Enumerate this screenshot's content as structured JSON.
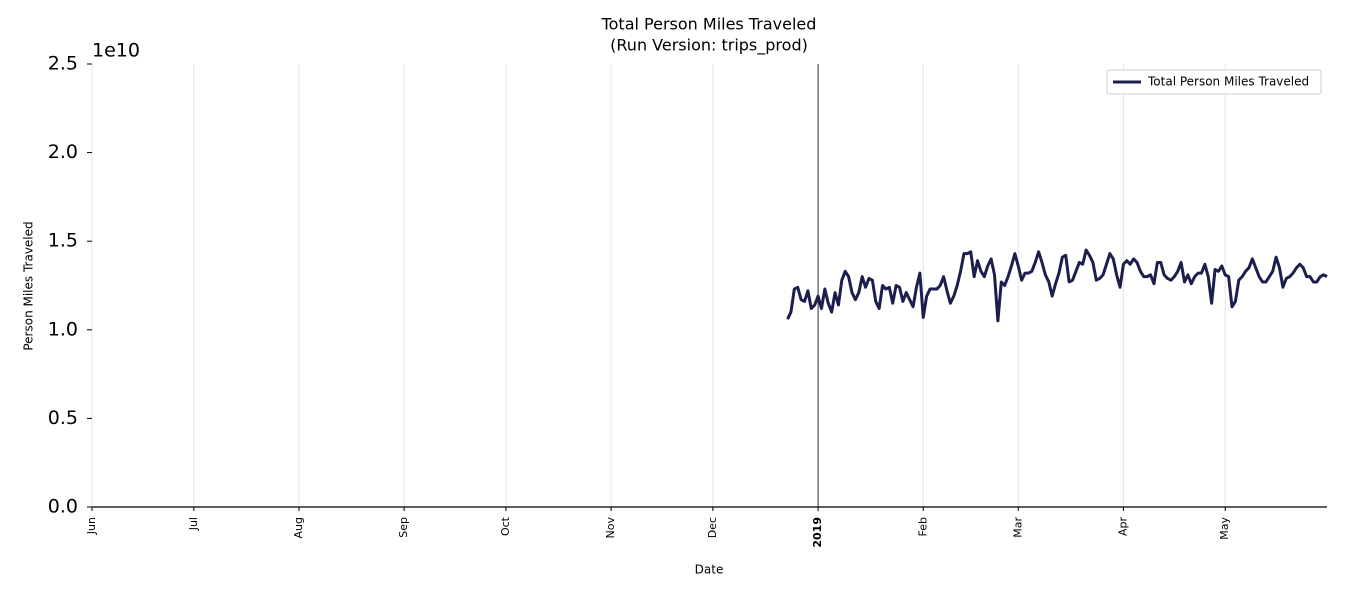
{
  "chart_data": {
    "type": "line",
    "title": "Total Person Miles Traveled",
    "subtitle": "(Run Version: trips_prod)",
    "x_label": "Date",
    "y_label": "Person Miles Traveled",
    "y_offset_label": "1e10",
    "xlim": [
      0,
      364
    ],
    "xticks": [
      {
        "value": 0,
        "label": "Jun"
      },
      {
        "value": 30,
        "label": "Jul"
      },
      {
        "value": 61,
        "label": "Aug"
      },
      {
        "value": 92,
        "label": "Sep"
      },
      {
        "value": 122,
        "label": "Oct"
      },
      {
        "value": 153,
        "label": "Nov"
      },
      {
        "value": 183,
        "label": "Dec"
      },
      {
        "value": 214,
        "label": "2019",
        "bold": true
      },
      {
        "value": 245,
        "label": "Feb"
      },
      {
        "value": 273,
        "label": "Mar"
      },
      {
        "value": 304,
        "label": "Apr"
      },
      {
        "value": 334,
        "label": "May"
      }
    ],
    "ylim": [
      0,
      25000000000
    ],
    "yticks": [
      {
        "value": 0,
        "label": "0.0"
      },
      {
        "value": 5000000000,
        "label": "0.5"
      },
      {
        "value": 10000000000,
        "label": "1.0"
      },
      {
        "value": 15000000000,
        "label": "1.5"
      },
      {
        "value": 20000000000,
        "label": "2.0"
      },
      {
        "value": 25000000000,
        "label": "2.5"
      }
    ],
    "grid": true,
    "legend": "upper right",
    "x": [
      205,
      206,
      207,
      208,
      209,
      210,
      211,
      212,
      213,
      214,
      215,
      216,
      217,
      218,
      219,
      220,
      221,
      222,
      223,
      224,
      225,
      226,
      227,
      228,
      229,
      230,
      231,
      232,
      233,
      234,
      235,
      236,
      237,
      238,
      239,
      240,
      241,
      242,
      243,
      244,
      245,
      246,
      247,
      248,
      249,
      250,
      251,
      252,
      253,
      254,
      255,
      256,
      257,
      258,
      259,
      260,
      261,
      262,
      263,
      264,
      265,
      266,
      267,
      268,
      269,
      270,
      271,
      272,
      273,
      274,
      275,
      276,
      277,
      278,
      279,
      280,
      281,
      282,
      283,
      284,
      285,
      286,
      287,
      288,
      289,
      290,
      291,
      292,
      293,
      294,
      295,
      296,
      297,
      298,
      299,
      300,
      301,
      302,
      303,
      304,
      305,
      306,
      307,
      308,
      309,
      310,
      311,
      312,
      313,
      314,
      315,
      316,
      317,
      318,
      319,
      320,
      321,
      322,
      323,
      324,
      325,
      326,
      327,
      328,
      329,
      330,
      331,
      332,
      333,
      334,
      335,
      336,
      337,
      338,
      339,
      340,
      341,
      342,
      343,
      344,
      345,
      346,
      347,
      348,
      349,
      350,
      351,
      352,
      353,
      354,
      355,
      356,
      357,
      358,
      359,
      360,
      361,
      362,
      363,
      364
    ],
    "series": [
      {
        "name": "Total Person Miles Traveled",
        "color": "#1c1f4d",
        "values": [
          10600000000.0,
          11000000000.0,
          12300000000.0,
          12400000000.0,
          11700000000.0,
          11600000000.0,
          12200000000.0,
          11200000000.0,
          11400000000.0,
          11900000000.0,
          11200000000.0,
          12300000000.0,
          11500000000.0,
          11000000000.0,
          12100000000.0,
          11400000000.0,
          12800000000.0,
          13300000000.0,
          13000000000.0,
          12100000000.0,
          11700000000.0,
          12100000000.0,
          13000000000.0,
          12400000000.0,
          12900000000.0,
          12800000000.0,
          11600000000.0,
          11200000000.0,
          12500000000.0,
          12300000000.0,
          12400000000.0,
          11500000000.0,
          12500000000.0,
          12400000000.0,
          11600000000.0,
          12100000000.0,
          11700000000.0,
          11300000000.0,
          12400000000.0,
          13200000000.0,
          10700000000.0,
          11900000000.0,
          12300000000.0,
          12300000000.0,
          12300000000.0,
          12500000000.0,
          13000000000.0,
          12200000000.0,
          11500000000.0,
          11900000000.0,
          12500000000.0,
          13300000000.0,
          14300000000.0,
          14300000000.0,
          14400000000.0,
          13000000000.0,
          13900000000.0,
          13300000000.0,
          13000000000.0,
          13600000000.0,
          14000000000.0,
          13100000000.0,
          10500000000.0,
          12700000000.0,
          12500000000.0,
          13000000000.0,
          13600000000.0,
          14300000000.0,
          13600000000.0,
          12800000000.0,
          13200000000.0,
          13200000000.0,
          13300000000.0,
          13800000000.0,
          14400000000.0,
          13800000000.0,
          13100000000.0,
          12700000000.0,
          11900000000.0,
          12600000000.0,
          13200000000.0,
          14100000000.0,
          14200000000.0,
          12700000000.0,
          12800000000.0,
          13300000000.0,
          13800000000.0,
          13700000000.0,
          14500000000.0,
          14200000000.0,
          13800000000.0,
          12800000000.0,
          12900000000.0,
          13100000000.0,
          13700000000.0,
          14300000000.0,
          14000000000.0,
          13100000000.0,
          12400000000.0,
          13700000000.0,
          13900000000.0,
          13700000000.0,
          14000000000.0,
          13800000000.0,
          13300000000.0,
          13000000000.0,
          13000000000.0,
          13100000000.0,
          12600000000.0,
          13800000000.0,
          13800000000.0,
          13100000000.0,
          12900000000.0,
          12800000000.0,
          13000000000.0,
          13300000000.0,
          13800000000.0,
          12700000000.0,
          13100000000.0,
          12600000000.0,
          13000000000.0,
          13200000000.0,
          13200000000.0,
          13700000000.0,
          13000000000.0,
          11500000000.0,
          13400000000.0,
          13300000000.0,
          13600000000.0,
          13100000000.0,
          13000000000.0,
          11300000000.0,
          11600000000.0,
          12800000000.0,
          13000000000.0,
          13300000000.0,
          13500000000.0,
          14000000000.0,
          13500000000.0,
          13000000000.0,
          12700000000.0,
          12700000000.0,
          13000000000.0,
          13300000000.0,
          14100000000.0,
          13500000000.0,
          12400000000.0,
          12900000000.0,
          13000000000.0,
          13200000000.0,
          13500000000.0,
          13700000000.0,
          13500000000.0,
          13000000000.0,
          13000000000.0,
          12700000000.0,
          12700000000.0,
          13000000000.0,
          13100000000.0,
          13000000000.0
        ]
      }
    ]
  }
}
